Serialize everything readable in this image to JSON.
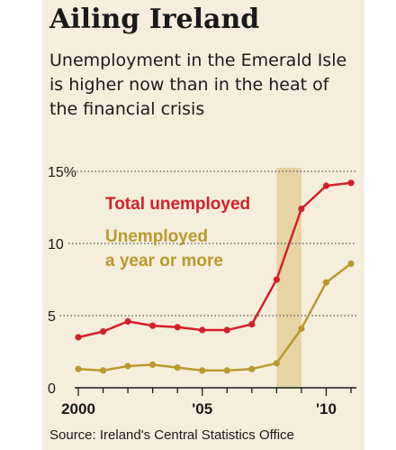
{
  "title": "Ailing Ireland",
  "subtitle": "Unemployment in the Emerald Isle is higher now than in the heat of the financial crisis",
  "source": "Source: Ireland's Central Statistics Office",
  "chart_data": {
    "type": "line",
    "title": "Ailing Ireland",
    "subtitle": "Unemployment in the Emerald Isle is higher now than in the heat of the financial crisis",
    "x": [
      2000,
      2001,
      2002,
      2003,
      2004,
      2005,
      2006,
      2007,
      2008,
      2009,
      2010,
      2011
    ],
    "xlim": [
      2000,
      2011
    ],
    "ylim": [
      0,
      15
    ],
    "yticks": [
      0,
      5,
      10,
      15
    ],
    "ytick_labels": [
      "0",
      "5",
      "10",
      "15%"
    ],
    "xticks": [
      2000,
      2001,
      2002,
      2003,
      2004,
      2005,
      2006,
      2007,
      2008,
      2009,
      2010,
      2011
    ],
    "xtick_labels": [
      {
        "x": 2000,
        "label": "2000"
      },
      {
        "x": 2005,
        "label": "'05"
      },
      {
        "x": 2010,
        "label": "'10"
      }
    ],
    "grid": "dotted horizontal",
    "shaded_period": [
      2008,
      2009
    ],
    "series": [
      {
        "name": "Total unemployed",
        "color": "#d4202c",
        "values": [
          3.5,
          3.9,
          4.6,
          4.3,
          4.2,
          4.0,
          4.0,
          4.4,
          7.5,
          12.4,
          14.0,
          14.2
        ]
      },
      {
        "name": "Unemployed a year or more",
        "color": "#b99a2e",
        "values": [
          1.3,
          1.2,
          1.5,
          1.6,
          1.4,
          1.2,
          1.2,
          1.3,
          1.7,
          4.1,
          7.3,
          8.6
        ]
      }
    ]
  },
  "legend": {
    "total_label": "Total unemployed",
    "longterm_line1": "Unemployed",
    "longterm_line2": "a year or more"
  },
  "colors": {
    "panel_bg": "#f6eedc",
    "shade": "#e6d4a5",
    "grid": "#555555",
    "axis": "#1a1a1a"
  }
}
